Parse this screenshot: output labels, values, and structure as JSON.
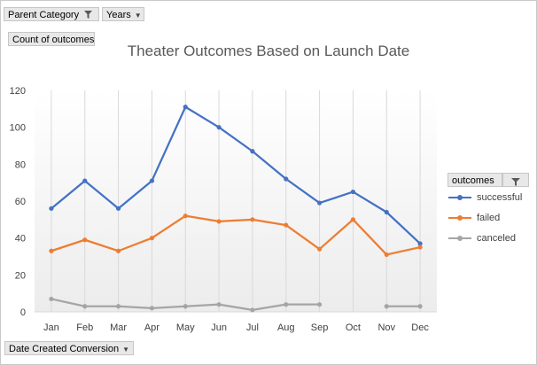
{
  "pivot_fields": {
    "parent_category": "Parent Category",
    "years": "Years",
    "count_of_outcomes": "Count of outcomes",
    "date_created_conversion": "Date Created Conversion",
    "legend_field": "outcomes"
  },
  "icons": {
    "filter": "filter-funnel-icon",
    "dropdown": "chevron-down-icon"
  },
  "colors": {
    "successful": "#4472c4",
    "failed": "#ed7d31",
    "canceled": "#a5a5a5"
  },
  "chart_data": {
    "type": "line",
    "title": "Theater Outcomes Based on Launch Date",
    "xlabel": "",
    "ylabel": "",
    "categories": [
      "Jan",
      "Feb",
      "Mar",
      "Apr",
      "May",
      "Jun",
      "Jul",
      "Aug",
      "Sep",
      "Oct",
      "Nov",
      "Dec"
    ],
    "ylim": [
      0,
      120
    ],
    "yticks": [
      0,
      20,
      40,
      60,
      80,
      100,
      120
    ],
    "grid": "vertical",
    "legend_position": "right",
    "series": [
      {
        "name": "successful",
        "values": [
          56,
          71,
          56,
          71,
          111,
          100,
          87,
          72,
          59,
          65,
          54,
          37
        ]
      },
      {
        "name": "failed",
        "values": [
          33,
          39,
          33,
          40,
          52,
          49,
          50,
          47,
          34,
          50,
          31,
          35
        ]
      },
      {
        "name": "canceled",
        "values": [
          7,
          3,
          3,
          2,
          3,
          4,
          1,
          4,
          4,
          null,
          3,
          3
        ]
      }
    ]
  }
}
